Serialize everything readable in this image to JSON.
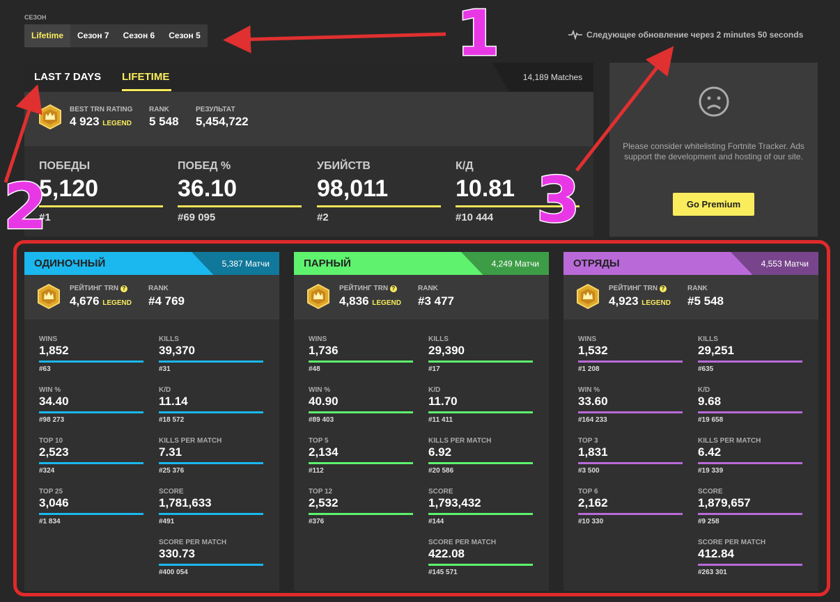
{
  "season": {
    "label": "СЕЗОН",
    "tabs": [
      "Lifetime",
      "Сезон 7",
      "Сезон 6",
      "Сезон 5"
    ]
  },
  "update_text": "Следующее обновление через 2 minutes 50 seconds",
  "overview": {
    "tabs": [
      "LAST 7 DAYS",
      "LIFETIME"
    ],
    "matches": "14,189 Matches",
    "best_label": "BEST TRN RATING",
    "best_value": "4 923",
    "legend": "LEGEND",
    "rank_label": "RANK",
    "rank_value": "5 548",
    "result_label": "РЕЗУЛЬТАТ",
    "result_value": "5,454,722",
    "stats": [
      {
        "label": "ПОБЕДЫ",
        "value": "5,120",
        "rank": "#1"
      },
      {
        "label": "ПОБЕД %",
        "value": "36.10",
        "rank": "#69 095"
      },
      {
        "label": "УБИЙСТВ",
        "value": "98,011",
        "rank": "#2"
      },
      {
        "label": "К/Д",
        "value": "10.81",
        "rank": "#10 444"
      }
    ]
  },
  "ad": {
    "text": "Please consider whitelisting Fortnite Tracker. Ads support the development and hosting of our site.",
    "button": "Go Premium"
  },
  "colors": {
    "solo": "#1ab8ee",
    "duo": "#5ef26e",
    "squad": "#b96ad8",
    "yellow": "#f9ec5d"
  },
  "modes": [
    {
      "title": "ОДИНОЧНЫЙ",
      "count": "5,387 Матчи",
      "rating_label": "РЕЙТИНГ TRN",
      "rating": "4,676",
      "legend": "LEGEND",
      "rank_label": "RANK",
      "rank": "#4 769",
      "left": [
        {
          "l": "WINS",
          "v": "1,852",
          "r": "#63"
        },
        {
          "l": "WIN %",
          "v": "34.40",
          "r": "#98 273"
        },
        {
          "l": "TOP 10",
          "v": "2,523",
          "r": "#324"
        },
        {
          "l": "TOP 25",
          "v": "3,046",
          "r": "#1 834"
        }
      ],
      "right": [
        {
          "l": "KILLS",
          "v": "39,370",
          "r": "#31"
        },
        {
          "l": "K/D",
          "v": "11.14",
          "r": "#18 572"
        },
        {
          "l": "KILLS PER MATCH",
          "v": "7.31",
          "r": "#25 376"
        },
        {
          "l": "SCORE",
          "v": "1,781,633",
          "r": "#491"
        },
        {
          "l": "SCORE PER MATCH",
          "v": "330.73",
          "r": "#400 054"
        }
      ]
    },
    {
      "title": "ПАРНЫЙ",
      "count": "4,249 Матчи",
      "rating_label": "РЕЙТИНГ TRN",
      "rating": "4,836",
      "legend": "LEGEND",
      "rank_label": "RANK",
      "rank": "#3 477",
      "left": [
        {
          "l": "WINS",
          "v": "1,736",
          "r": "#48"
        },
        {
          "l": "WIN %",
          "v": "40.90",
          "r": "#89 403"
        },
        {
          "l": "TOP 5",
          "v": "2,134",
          "r": "#112"
        },
        {
          "l": "TOP 12",
          "v": "2,532",
          "r": "#376"
        }
      ],
      "right": [
        {
          "l": "KILLS",
          "v": "29,390",
          "r": "#17"
        },
        {
          "l": "K/D",
          "v": "11.70",
          "r": "#11 411"
        },
        {
          "l": "KILLS PER MATCH",
          "v": "6.92",
          "r": "#20 586"
        },
        {
          "l": "SCORE",
          "v": "1,793,432",
          "r": "#144"
        },
        {
          "l": "SCORE PER MATCH",
          "v": "422.08",
          "r": "#145 571"
        }
      ]
    },
    {
      "title": "ОТРЯДЫ",
      "count": "4,553 Матчи",
      "rating_label": "РЕЙТИНГ TRN",
      "rating": "4,923",
      "legend": "LEGEND",
      "rank_label": "RANK",
      "rank": "#5 548",
      "left": [
        {
          "l": "WINS",
          "v": "1,532",
          "r": "#1 208"
        },
        {
          "l": "WIN %",
          "v": "33.60",
          "r": "#164 233"
        },
        {
          "l": "TOP 3",
          "v": "1,831",
          "r": "#3 500"
        },
        {
          "l": "TOP 6",
          "v": "2,162",
          "r": "#10 330"
        }
      ],
      "right": [
        {
          "l": "KILLS",
          "v": "29,251",
          "r": "#635"
        },
        {
          "l": "K/D",
          "v": "9.68",
          "r": "#19 658"
        },
        {
          "l": "KILLS PER MATCH",
          "v": "6.42",
          "r": "#19 339"
        },
        {
          "l": "SCORE",
          "v": "1,879,657",
          "r": "#9 258"
        },
        {
          "l": "SCORE PER MATCH",
          "v": "412.84",
          "r": "#263 301"
        }
      ]
    }
  ],
  "annotations": [
    "1",
    "2",
    "3"
  ]
}
